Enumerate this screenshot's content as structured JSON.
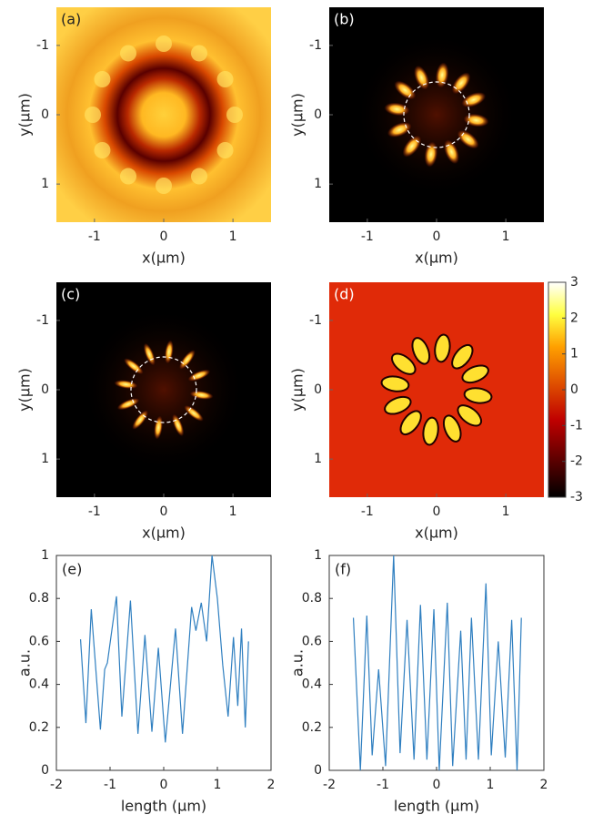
{
  "chart_data": [
    {
      "type": "heatmap",
      "label": "(a)",
      "xlabel": "x(μm)",
      "ylabel": "y(μm)",
      "xlim": [
        -1.55,
        1.55
      ],
      "ylim": [
        -1.55,
        1.55
      ],
      "y_reversed": true,
      "xticks": [
        -1,
        0,
        1
      ],
      "yticks": [
        -1,
        0,
        1
      ]
    },
    {
      "type": "heatmap",
      "label": "(b)",
      "xlabel": "x(μm)",
      "ylabel": "y(μm)",
      "xlim": [
        -1.55,
        1.55
      ],
      "ylim": [
        -1.55,
        1.55
      ],
      "y_reversed": true,
      "xticks": [
        -1,
        0,
        1
      ],
      "yticks": [
        -1,
        0,
        1
      ]
    },
    {
      "type": "heatmap",
      "label": "(c)",
      "xlabel": "x(μm)",
      "ylabel": "y(μm)",
      "xlim": [
        -1.55,
        1.55
      ],
      "ylim": [
        -1.55,
        1.55
      ],
      "y_reversed": true,
      "xticks": [
        -1,
        0,
        1
      ],
      "yticks": [
        -1,
        0,
        1
      ]
    },
    {
      "type": "heatmap",
      "label": "(d)",
      "xlabel": "x(μm)",
      "ylabel": "y(μm)",
      "xlim": [
        -1.55,
        1.55
      ],
      "ylim": [
        -1.55,
        1.55
      ],
      "y_reversed": true,
      "xticks": [
        -1,
        0,
        1
      ],
      "yticks": [
        -1,
        0,
        1
      ],
      "colorbar": {
        "lim": [
          -3,
          3
        ],
        "ticks": [
          3,
          2,
          1,
          0,
          -1,
          -2,
          -3
        ]
      }
    },
    {
      "type": "line",
      "label": "(e)",
      "xlabel": "length (μm)",
      "ylabel": "a.u.",
      "color": "#2f7fc0",
      "xlim": [
        -2,
        2
      ],
      "ylim": [
        0,
        1
      ],
      "xticks": [
        -2,
        -1,
        0,
        1,
        2
      ],
      "yticks": [
        0,
        0.2,
        0.4,
        0.6,
        0.8,
        1
      ],
      "x": [
        -1.55,
        -1.45,
        -1.35,
        -1.18,
        -1.1,
        -1.05,
        -0.88,
        -0.78,
        -0.62,
        -0.48,
        -0.35,
        -0.22,
        -0.1,
        0.03,
        0.22,
        0.35,
        0.52,
        0.6,
        0.7,
        0.8,
        0.9,
        1.0,
        1.1,
        1.2,
        1.3,
        1.38,
        1.45,
        1.52,
        1.58
      ],
      "values": [
        0.61,
        0.22,
        0.75,
        0.19,
        0.47,
        0.5,
        0.81,
        0.25,
        0.79,
        0.17,
        0.63,
        0.18,
        0.57,
        0.13,
        0.66,
        0.17,
        0.76,
        0.65,
        0.78,
        0.6,
        1.0,
        0.8,
        0.49,
        0.25,
        0.62,
        0.3,
        0.66,
        0.2,
        0.6
      ]
    },
    {
      "type": "line",
      "label": "(f)",
      "xlabel": "length (μm)",
      "ylabel": "a.u.",
      "color": "#2f7fc0",
      "xlim": [
        -2,
        2
      ],
      "ylim": [
        0,
        1
      ],
      "xticks": [
        -2,
        -1,
        0,
        1,
        2
      ],
      "yticks": [
        0,
        0.2,
        0.4,
        0.6,
        0.8,
        1
      ],
      "x": [
        -1.55,
        -1.42,
        -1.3,
        -1.2,
        -1.08,
        -0.95,
        -0.8,
        -0.68,
        -0.55,
        -0.42,
        -0.3,
        -0.18,
        -0.05,
        0.05,
        0.2,
        0.3,
        0.45,
        0.55,
        0.65,
        0.78,
        0.92,
        1.02,
        1.15,
        1.28,
        1.4,
        1.5,
        1.58
      ],
      "values": [
        0.71,
        0,
        0.72,
        0.07,
        0.47,
        0.02,
        1.0,
        0.08,
        0.7,
        0.05,
        0.77,
        0.05,
        0.75,
        0,
        0.78,
        0.02,
        0.65,
        0.05,
        0.71,
        0.05,
        0.87,
        0.07,
        0.6,
        0.06,
        0.7,
        0,
        0.71
      ]
    }
  ]
}
